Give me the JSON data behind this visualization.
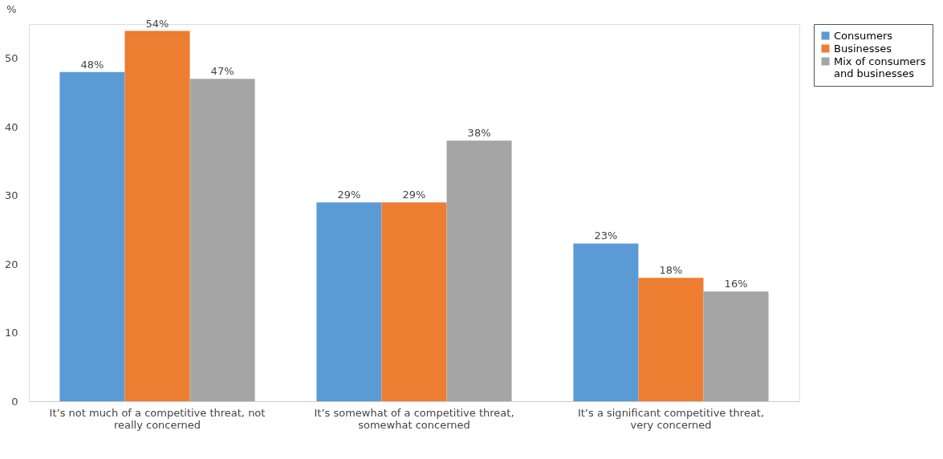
{
  "chart_data": {
    "type": "bar",
    "ylabel": "%",
    "categories": [
      "It’s not much of a competitive threat, not really concerned",
      "It’s somewhat of a competitive threat, somewhat concerned",
      "It’s a significant competitive threat, very concerned"
    ],
    "series": [
      {
        "name": "Consumers",
        "color": "#5b9bd5",
        "values": [
          48,
          29,
          23
        ],
        "value_labels": [
          "48%",
          "29%",
          "23%"
        ]
      },
      {
        "name": "Businesses",
        "color": "#ed7d31",
        "values": [
          54,
          29,
          18
        ],
        "value_labels": [
          "54%",
          "29%",
          "18%"
        ]
      },
      {
        "name": "Mix of consumers and businesses",
        "color": "#a5a5a5",
        "values": [
          47,
          38,
          16
        ],
        "value_labels": [
          "47%",
          "38%",
          "16%"
        ]
      }
    ],
    "ylim": [
      0,
      55
    ],
    "yticks": [
      0,
      10,
      20,
      30,
      40,
      50
    ],
    "grid": false,
    "legend": "right"
  }
}
